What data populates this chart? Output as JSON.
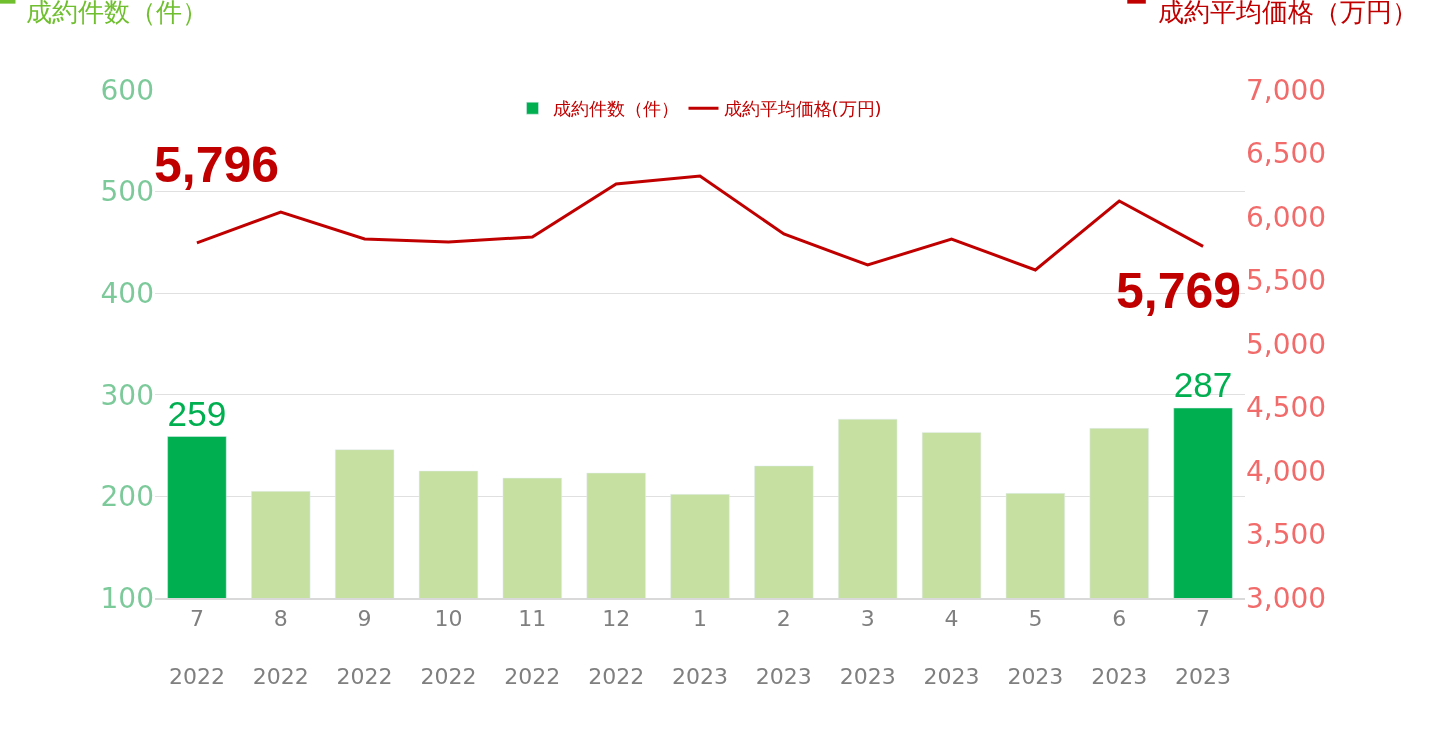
{
  "chart_data": {
    "type": "bar",
    "ylabel": "成約件数（件）",
    "y2label": "成約平均価格（万円）",
    "categories": [
      "7\n2022",
      "8\n2022",
      "9\n2022",
      "10\n2022",
      "11\n2022",
      "12\n2022",
      "1\n2023",
      "2\n2023",
      "3\n2023",
      "4\n2023",
      "5\n2023",
      "6\n2023",
      "7\n2023"
    ],
    "series": [
      {
        "name": "成約件数（件）",
        "color": "#c5e0a0",
        "colors": [
          "#00b050",
          "#c5e0a0",
          "#c5e0a0",
          "#c5e0a0",
          "#c5e0a0",
          "#c5e0a0",
          "#c5e0a0",
          "#c5e0a0",
          "#c5e0a0",
          "#c5e0a0",
          "#c5e0a0",
          "#c5e0a0",
          "#00b050"
        ],
        "values": [
          259,
          205,
          246,
          225,
          218,
          223,
          202,
          230,
          276,
          263,
          203,
          267,
          287
        ],
        "value_labels": [
          "259",
          null,
          null,
          null,
          null,
          null,
          null,
          null,
          null,
          null,
          null,
          null,
          "287"
        ]
      },
      {
        "name": "成約平均価格(万円)",
        "type": "line",
        "axis": "y2",
        "color": "#c00000",
        "values": [
          5796,
          6039,
          5827,
          5803,
          5843,
          6260,
          6323,
          5866,
          5622,
          5827,
          5583,
          6126,
          5769
        ],
        "value_labels": [
          "5,796",
          null,
          null,
          null,
          null,
          null,
          null,
          null,
          null,
          null,
          null,
          null,
          "5,769"
        ]
      }
    ],
    "ylim": [
      100,
      600
    ],
    "yticks": [
      100,
      200,
      300,
      400,
      500,
      600
    ],
    "y2lim": [
      3000,
      7000
    ],
    "y2ticks": [
      {
        "value": 3000,
        "label": "3,000"
      },
      {
        "value": 3500,
        "label": "3,500"
      },
      {
        "value": 4000,
        "label": "4,000"
      },
      {
        "value": 4500,
        "label": "4,500"
      },
      {
        "value": 5000,
        "label": "5,000"
      },
      {
        "value": 5500,
        "label": "5,500"
      },
      {
        "value": 6000,
        "label": "6,000"
      },
      {
        "value": 6500,
        "label": "6,500"
      },
      {
        "value": 7000,
        "label": "7,000"
      }
    ],
    "grid": "y",
    "legend": "top",
    "marker": "none",
    "line_style": "solid"
  }
}
